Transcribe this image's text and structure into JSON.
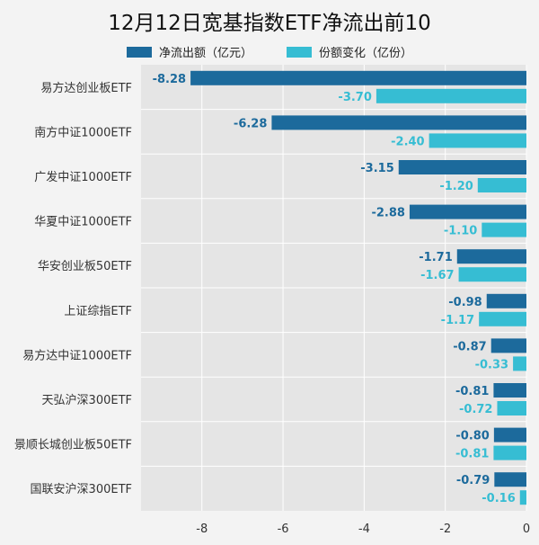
{
  "chart_data": {
    "type": "bar",
    "orientation": "horizontal",
    "title": "12月12日宽基指数ETF净流出前10",
    "categories": [
      "易方达创业板ETF",
      "南方中证1000ETF",
      "广发中证1000ETF",
      "华夏中证1000ETF",
      "华安创业板50ETF",
      "上证综指ETF",
      "易方达中证1000ETF",
      "天弘沪深300ETF",
      "景顺长城创业板50ETF",
      "国联安沪深300ETF"
    ],
    "series": [
      {
        "name": "净流出额（亿元）",
        "color": "#1c6a9c",
        "values": [
          -8.28,
          -6.28,
          -3.15,
          -2.88,
          -1.71,
          -0.98,
          -0.87,
          -0.81,
          -0.8,
          -0.79
        ],
        "labels": [
          "-8.28",
          "-6.28",
          "-3.15",
          "-2.88",
          "-1.71",
          "-0.98",
          "-0.87",
          "-0.81",
          "-0.80",
          "-0.79"
        ]
      },
      {
        "name": "份额变化（亿份）",
        "color": "#36bdd3",
        "values": [
          -3.7,
          -2.4,
          -1.2,
          -1.1,
          -1.67,
          -1.17,
          -0.33,
          -0.72,
          -0.81,
          -0.16
        ],
        "labels": [
          "-3.70",
          "-2.40",
          "-1.20",
          "-1.10",
          "-1.67",
          "-1.17",
          "-0.33",
          "-0.72",
          "-0.81",
          "-0.16"
        ]
      }
    ],
    "xlim": [
      -9.5,
      0
    ],
    "xticks": [
      -8,
      -6,
      -4,
      -2,
      0
    ],
    "xtick_labels": [
      "-8",
      "-6",
      "-4",
      "-2",
      "0"
    ],
    "grid": true,
    "legend_position": "top-center"
  }
}
